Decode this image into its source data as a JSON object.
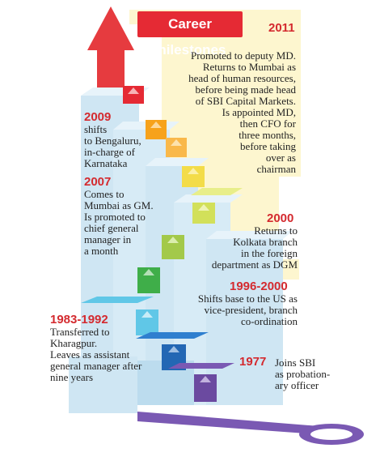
{
  "title": "Career milestones",
  "colors": {
    "accent": "#e52a34",
    "year": "#d42a2f",
    "panel": "#fdf6cf",
    "stair": "#cfe6f3"
  },
  "milestones": [
    {
      "year": "2011",
      "text": "Promoted to deputy MD.\nReturns to Mumbai as\nhead of human resources,\nbefore being made head\nof SBI Capital Markets.\nIs appointed MD,\nthen CFO for\nthree months,\nbefore taking\nover as\nchairman"
    },
    {
      "year": "2009",
      "text": "shifts\nto Bengaluru,\nin-charge of\nKarnataka"
    },
    {
      "year": "2007",
      "text": "Comes to\nMumbai as GM.\nIs promoted to\nchief general\nmanager in\na month"
    },
    {
      "year": "2000",
      "text": "Returns to\nKolkata branch\nin the foreign\ndepartment as DGM"
    },
    {
      "year": "1996-2000",
      "text": "Shifts base to the US as\nvice-president, branch\nco-ordination"
    },
    {
      "year": "1983-1992",
      "text": "Transferred to\nKharagpur.\nLeaves as assistant\ngeneral manager after\nnine years"
    },
    {
      "year": "1977",
      "text": "Joins SBI\nas probation-\nary officer"
    }
  ]
}
